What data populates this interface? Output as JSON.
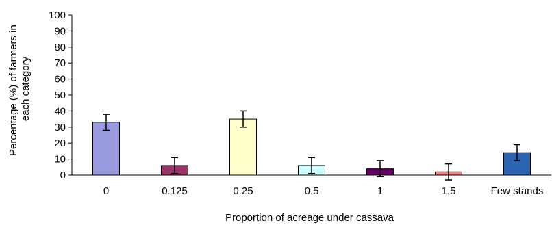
{
  "chart_data": {
    "type": "bar",
    "title": "",
    "xlabel": "Proportion of acreage under cassava",
    "ylabel_lines": [
      "Percentage (%) of farmers in",
      "each category"
    ],
    "ylim": [
      0,
      100
    ],
    "yticks": [
      0,
      10,
      20,
      30,
      40,
      50,
      60,
      70,
      80,
      90,
      100
    ],
    "categories": [
      "0",
      "0.125",
      "0.25",
      "0.5",
      "1",
      "1.5",
      "Few stands"
    ],
    "values": [
      33,
      6,
      35,
      6,
      4,
      2,
      14
    ],
    "error": [
      5,
      5,
      5,
      5,
      5,
      5,
      5
    ],
    "bar_colors": [
      "#9999dd",
      "#993366",
      "#ffffcc",
      "#ccffff",
      "#660066",
      "#ff8080",
      "#2b63b0"
    ],
    "grid": false,
    "legend": "none"
  }
}
